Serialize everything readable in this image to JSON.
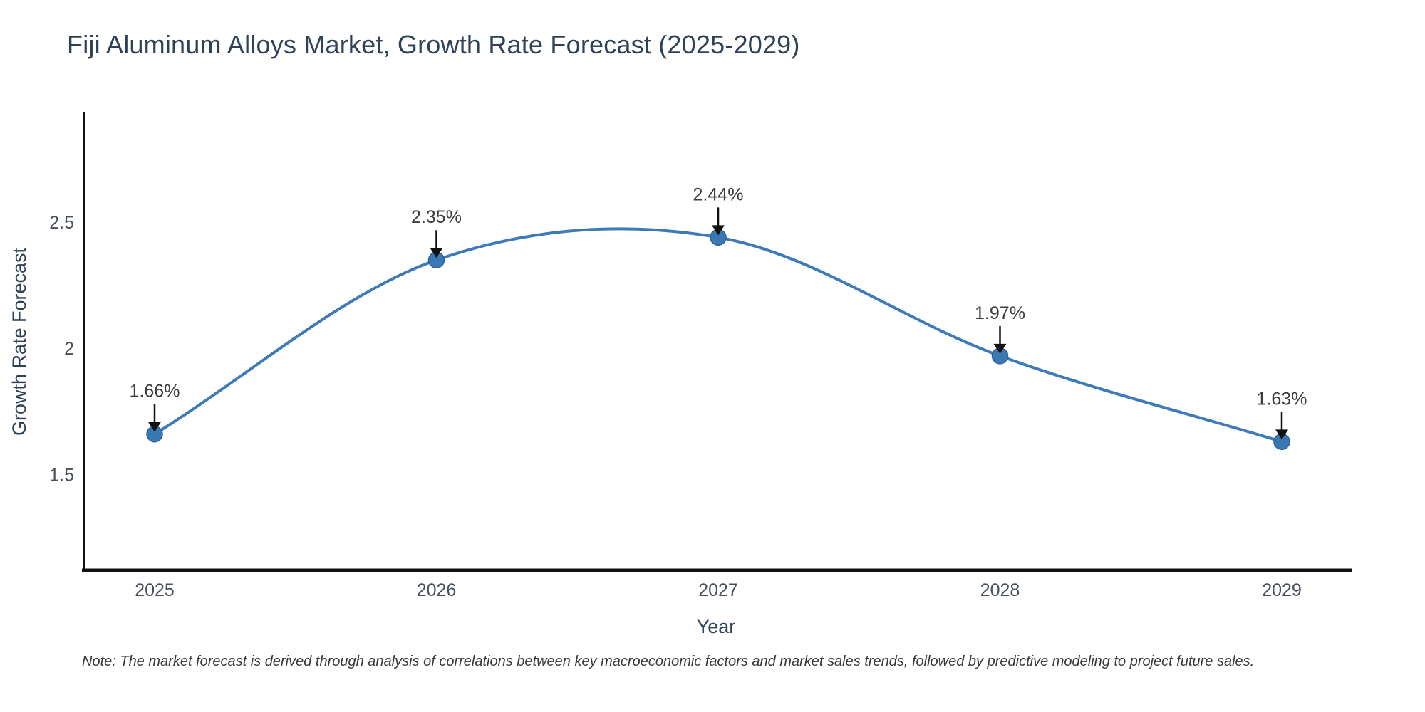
{
  "title": "Fiji Aluminum Alloys Market, Growth Rate Forecast (2025-2029)",
  "footnote": "Note: The market forecast is derived through analysis of correlations between key macroeconomic factors and market sales trends, followed by predictive modeling to project future sales.",
  "chart_data": {
    "type": "line",
    "title": "Fiji Aluminum Alloys Market, Growth Rate Forecast (2025-2029)",
    "xlabel": "Year",
    "ylabel": "Growth Rate Forecast",
    "categories": [
      "2025",
      "2026",
      "2027",
      "2028",
      "2029"
    ],
    "series": [
      {
        "name": "Growth Rate Forecast",
        "values": [
          1.66,
          2.35,
          2.44,
          1.97,
          1.63
        ],
        "point_labels": [
          "1.66%",
          "2.35%",
          "2.44%",
          "1.97%",
          "1.63%"
        ]
      }
    ],
    "yticks": [
      2.5,
      2.0,
      1.5
    ],
    "ytick_labels": [
      "2.5",
      "2",
      "1.5"
    ],
    "ylim": [
      1.12,
      2.935
    ],
    "grid": false,
    "legend_position": "none",
    "curve": "smooth-spline",
    "annotations_have_arrows": true,
    "colors": {
      "line": "#3d7ab7",
      "marker_fill": "#3a78b3",
      "marker_edge": "#2d639c",
      "axis_spine": "#111111",
      "tick_label": "#47505a",
      "axis_title": "#2e4157",
      "annotation_text": "#3c3c3c",
      "annotation_arrow": "#111111"
    }
  }
}
